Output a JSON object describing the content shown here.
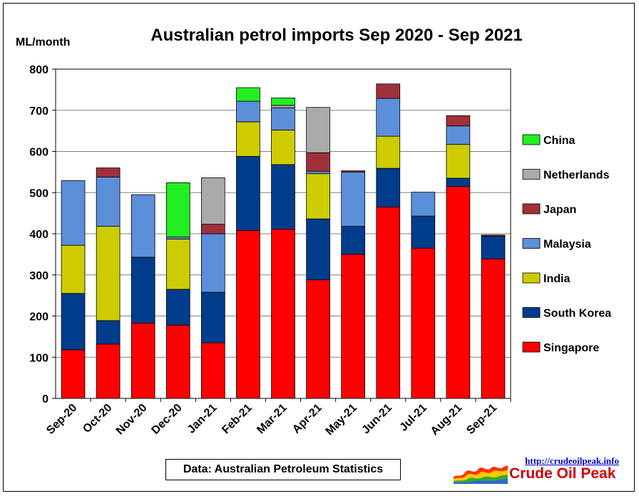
{
  "chart_data": {
    "type": "bar",
    "stacked": true,
    "title": "Australian petrol imports Sep 2020 - Sep 2021",
    "ylabel": "ML/month",
    "ylim": [
      0,
      800
    ],
    "yticks": [
      0,
      100,
      200,
      300,
      400,
      500,
      600,
      700,
      800
    ],
    "grid": true,
    "legend_position": "right",
    "categories": [
      "Sep-20",
      "Oct-20",
      "Nov-20",
      "Dec-20",
      "Jan-21",
      "Feb-21",
      "Mar-21",
      "Apr-21",
      "May-21",
      "Jun-21",
      "Jul-21",
      "Aug-21",
      "Sep-21"
    ],
    "series": [
      {
        "name": "Singapore",
        "color": "#ff0000",
        "values": [
          118,
          132,
          183,
          178,
          135,
          408,
          411,
          288,
          350,
          465,
          365,
          515,
          339
        ]
      },
      {
        "name": "South Korea",
        "color": "#003c8c",
        "values": [
          137,
          57,
          160,
          87,
          123,
          180,
          157,
          148,
          68,
          94,
          78,
          20,
          55
        ]
      },
      {
        "name": "India",
        "color": "#cccc00",
        "values": [
          117,
          229,
          0,
          122,
          0,
          84,
          84,
          110,
          0,
          78,
          0,
          82,
          0
        ]
      },
      {
        "name": "Malaysia",
        "color": "#5b8fd9",
        "values": [
          157,
          120,
          152,
          5,
          142,
          50,
          54,
          6,
          132,
          92,
          58,
          45,
          0
        ]
      },
      {
        "name": "Japan",
        "color": "#a0303a",
        "values": [
          0,
          22,
          0,
          0,
          23,
          0,
          0,
          45,
          3,
          35,
          0,
          25,
          3
        ]
      },
      {
        "name": "Netherlands",
        "color": "#aaaaaa",
        "values": [
          0,
          0,
          0,
          0,
          113,
          0,
          6,
          110,
          0,
          0,
          0,
          0,
          0
        ]
      },
      {
        "name": "China",
        "color": "#22ee22",
        "values": [
          0,
          0,
          0,
          132,
          0,
          33,
          18,
          0,
          0,
          0,
          0,
          0,
          0
        ]
      }
    ],
    "legend_order": [
      "China",
      "Netherlands",
      "Japan",
      "Malaysia",
      "India",
      "South Korea",
      "Singapore"
    ]
  },
  "source_note": "Data: Australian Petroleum Statistics",
  "branding": {
    "url": "http://crudeoilpeak.info",
    "name": "Crude Oil Peak"
  }
}
